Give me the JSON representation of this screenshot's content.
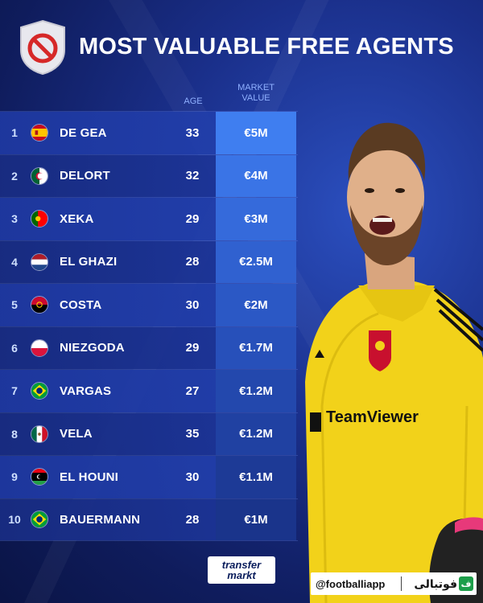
{
  "header": {
    "title": "MOST VALUABLE FREE AGENTS",
    "badge_icon": "prohibited-icon"
  },
  "columns": {
    "age": "AGE",
    "market_value_line1": "MARKET",
    "market_value_line2": "VALUE"
  },
  "rows": [
    {
      "rank": "1",
      "flag": "spain-flag-icon",
      "name": "DE GEA",
      "age": "33",
      "value": "€5M"
    },
    {
      "rank": "2",
      "flag": "algeria-flag-icon",
      "name": "DELORT",
      "age": "32",
      "value": "€4M"
    },
    {
      "rank": "3",
      "flag": "portugal-flag-icon",
      "name": "XEKA",
      "age": "29",
      "value": "€3M"
    },
    {
      "rank": "4",
      "flag": "netherlands-flag-icon",
      "name": "EL GHAZI",
      "age": "28",
      "value": "€2.5M"
    },
    {
      "rank": "5",
      "flag": "angola-flag-icon",
      "name": "COSTA",
      "age": "30",
      "value": "€2M"
    },
    {
      "rank": "6",
      "flag": "poland-flag-icon",
      "name": "NIEZGODA",
      "age": "29",
      "value": "€1.7M"
    },
    {
      "rank": "7",
      "flag": "brazil-flag-icon",
      "name": "VARGAS",
      "age": "27",
      "value": "€1.2M"
    },
    {
      "rank": "8",
      "flag": "mexico-flag-icon",
      "name": "VELA",
      "age": "35",
      "value": "€1.2M"
    },
    {
      "rank": "9",
      "flag": "libya-flag-icon",
      "name": "EL HOUNI",
      "age": "30",
      "value": "€1.1M"
    },
    {
      "rank": "10",
      "flag": "brazil-flag-icon",
      "name": "BAUERMANN",
      "age": "28",
      "value": "€1M"
    }
  ],
  "value_colors": [
    "#3f7ef0",
    "#3a74e6",
    "#356adb",
    "#3061d0",
    "#2b58c5",
    "#2750ba",
    "#2348ad",
    "#2041a2",
    "#1d3a96",
    "#1a348b"
  ],
  "footer": {
    "logo_line1": "transfer",
    "logo_line2": "markt",
    "handle": "@footballiapp",
    "brand": "فوتبالی",
    "brand_icon_text": "ف"
  }
}
